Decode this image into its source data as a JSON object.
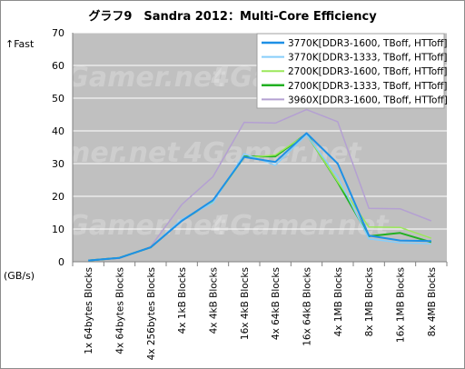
{
  "chart_data": {
    "type": "line",
    "title": "グラフ9　Sandra 2012：Multi-Core Efficiency",
    "ylabel_top": "↑Fast",
    "yunit": "(GB/s)",
    "ylim": [
      0,
      70
    ],
    "yticks": [
      0,
      10,
      20,
      30,
      40,
      50,
      60,
      70
    ],
    "grid": true,
    "legend_position": "top-right",
    "watermark": "4Gamer.net",
    "categories": [
      "1x 64bytes Blocks",
      "4x 64bytes Blocks",
      "4x 256bytes Blocks",
      "4x 1kB Blocks",
      "4x 4kB Blocks",
      "16x 4kB Blocks",
      "4x 64kB Blocks",
      "16x 64kB Blocks",
      "4x 1MB Blocks",
      "8x 1MB Blocks",
      "16x 1MB Blocks",
      "8x 4MB Blocks"
    ],
    "series": [
      {
        "name": "3770K[DDR3-1600, TBoff, HTToff]",
        "color": "#1e90e6",
        "width": 2,
        "values": [
          0.4,
          1.2,
          4.4,
          12.5,
          18.8,
          32.0,
          30.5,
          39.3,
          30.0,
          8.0,
          6.5,
          6.3
        ]
      },
      {
        "name": "3770K[DDR3-1333, TBoff, HTToff]",
        "color": "#87cefa",
        "width": 1.5,
        "values": [
          0.4,
          1.2,
          4.4,
          13.0,
          18.0,
          33.0,
          29.5,
          38.8,
          26.0,
          7.0,
          5.8,
          5.5
        ]
      },
      {
        "name": "2700K[DDR3-1600, TBoff, HTToff]",
        "color": "#9be85a",
        "width": 1.5,
        "values": [
          0.4,
          1.2,
          4.4,
          12.6,
          18.5,
          31.8,
          32.6,
          39.0,
          24.5,
          10.6,
          10.5,
          7.2
        ]
      },
      {
        "name": "2700K[DDR3-1333, TBoff, HTToff]",
        "color": "#22b022",
        "width": 2,
        "values": [
          0.4,
          1.2,
          4.4,
          12.6,
          18.5,
          32.2,
          32.2,
          39.1,
          24.3,
          7.8,
          8.8,
          6.0
        ]
      },
      {
        "name": "3960X[DDR3-1600, TBoff, HTToff]",
        "color": "#b4a0d2",
        "width": 1.5,
        "values": [
          0.4,
          1.0,
          4.6,
          17.5,
          26.0,
          42.6,
          42.4,
          46.5,
          42.8,
          16.3,
          16.2,
          12.5
        ]
      }
    ]
  }
}
